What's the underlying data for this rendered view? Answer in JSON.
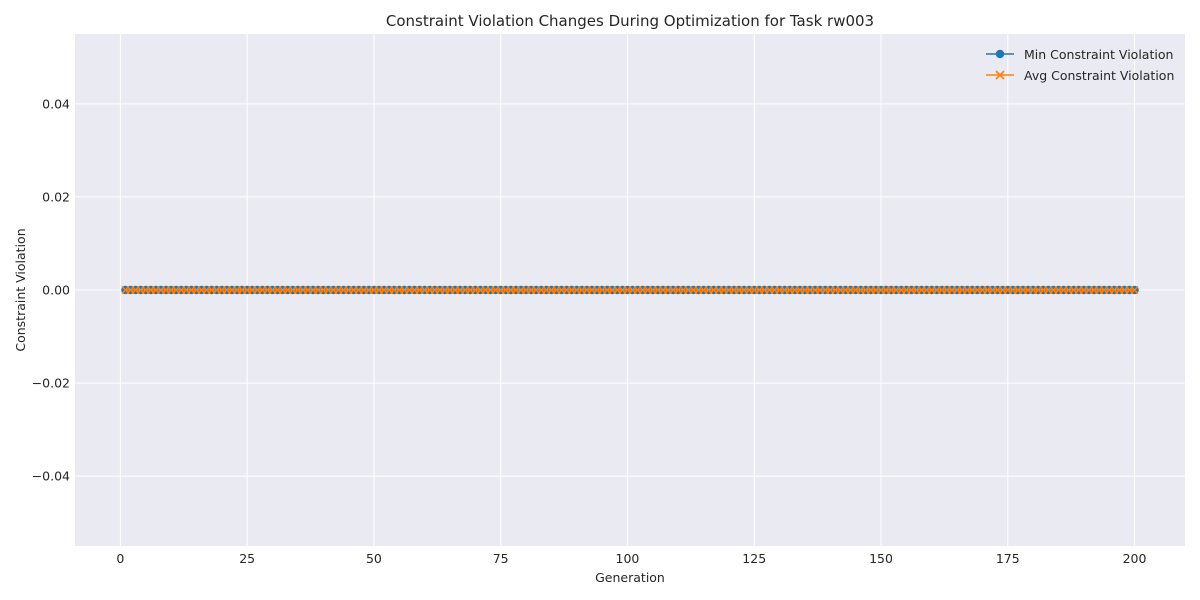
{
  "chart_data": {
    "type": "line",
    "title": "Constraint Violation Changes During Optimization for Task rw003",
    "xlabel": "Generation",
    "ylabel": "Constraint Violation",
    "xlim": [
      -8.95,
      209.95
    ],
    "ylim": [
      -0.055,
      0.055
    ],
    "xticks": [
      0,
      25,
      50,
      75,
      100,
      125,
      150,
      175,
      200
    ],
    "xtick_labels": [
      "0",
      "25",
      "50",
      "75",
      "100",
      "125",
      "150",
      "175",
      "200"
    ],
    "yticks": [
      -0.04,
      -0.02,
      0.0,
      0.02,
      0.04
    ],
    "ytick_labels": [
      "−0.04",
      "−0.02",
      "0.00",
      "0.02",
      "0.04"
    ],
    "grid": true,
    "legend_position": "top-right",
    "x": {
      "start": 1,
      "end": 200,
      "step": 1
    },
    "series": [
      {
        "name": "Min Constraint Violation",
        "marker": "circle",
        "color": "#1f77b4",
        "constant_value": 0.0
      },
      {
        "name": "Avg Constraint Violation",
        "marker": "x",
        "color": "#ff7f0e",
        "constant_value": 0.0
      }
    ],
    "colors": {
      "background": "#eaeaf2",
      "grid": "#ffffff",
      "text": "#262626"
    }
  }
}
